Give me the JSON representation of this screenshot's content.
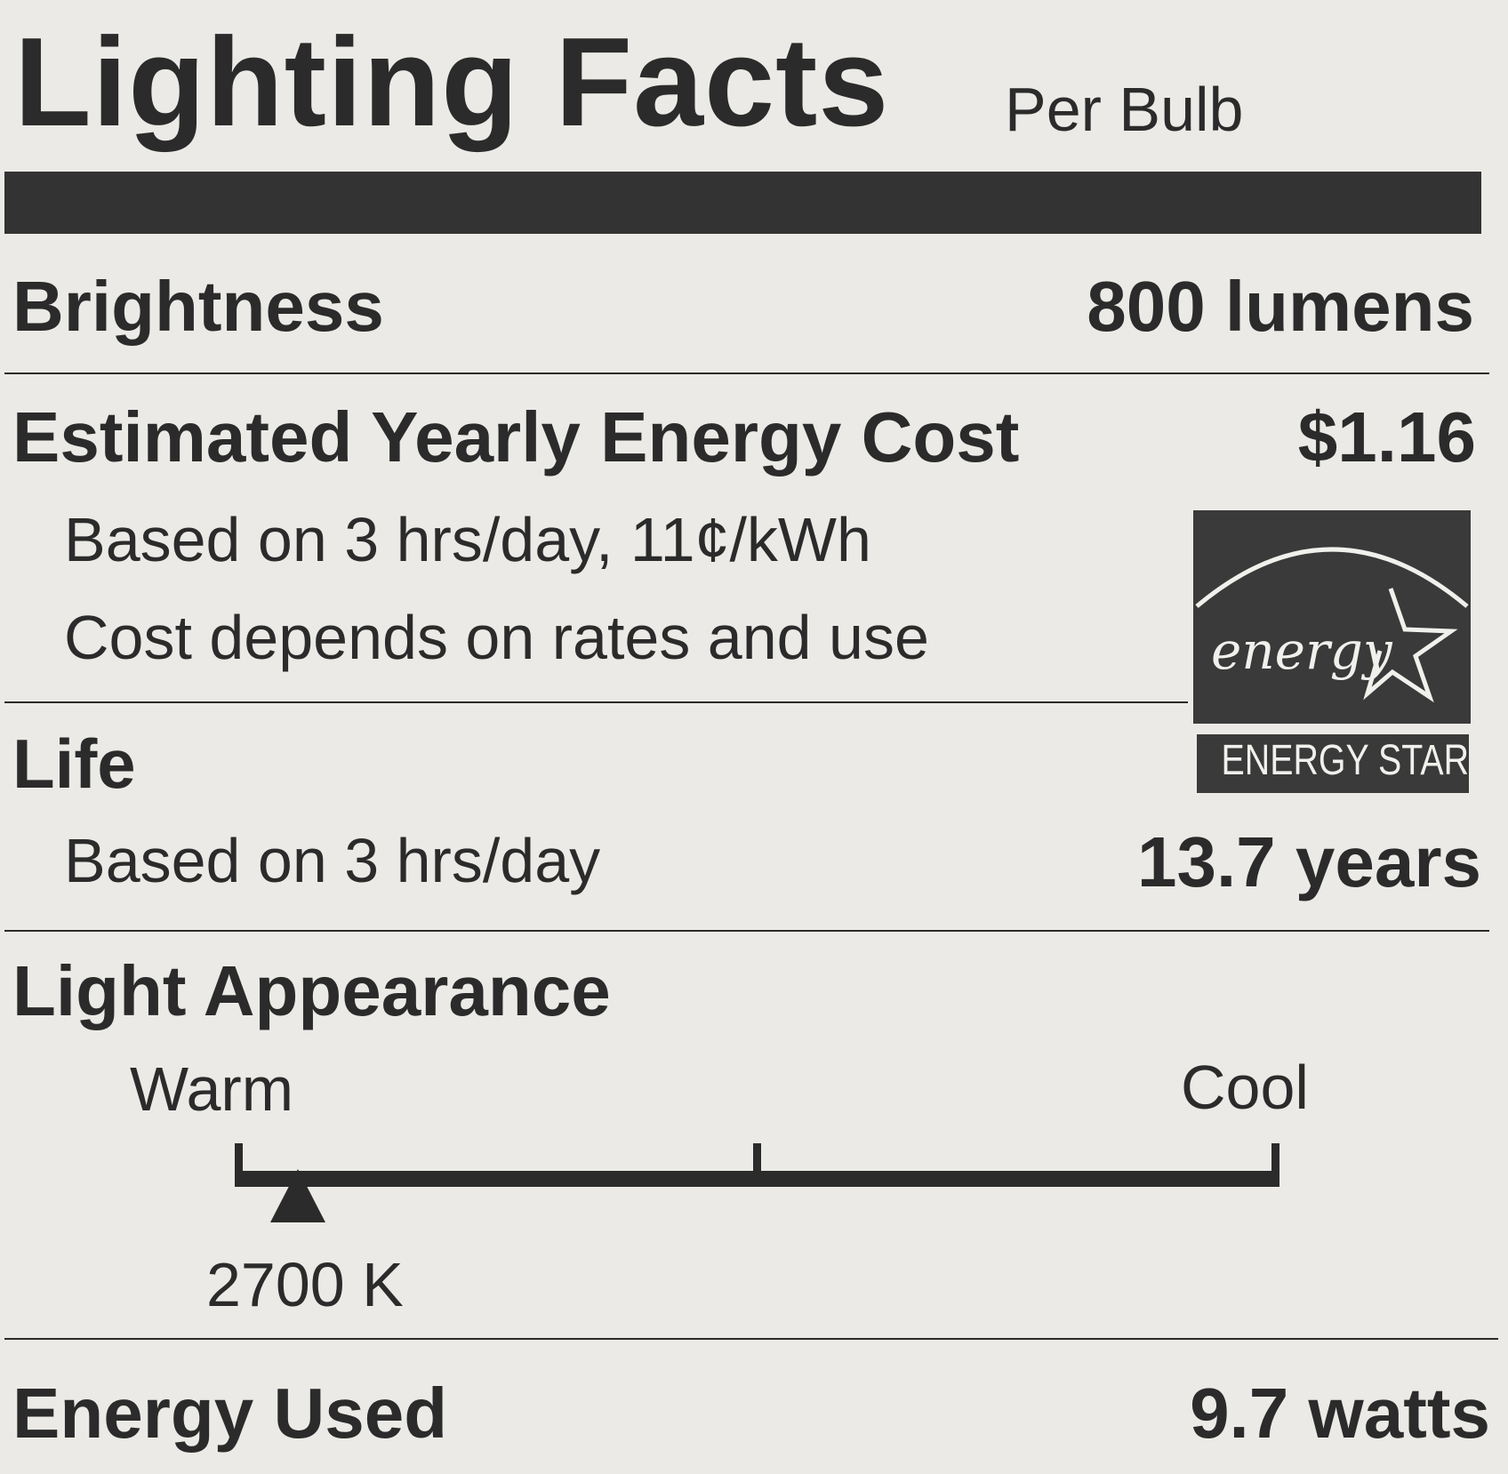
{
  "title": "Lighting Facts",
  "subtitle": "Per Bulb",
  "brightness": {
    "label": "Brightness",
    "value": "800 lumens"
  },
  "energy_cost": {
    "label": "Estimated Yearly Energy Cost",
    "value": "$1.16",
    "note1": "Based on 3 hrs/day, 11¢/kWh",
    "note2": "Cost depends on rates and use"
  },
  "life": {
    "label": "Life",
    "note": "Based on 3 hrs/day",
    "value": "13.7 years"
  },
  "light_appearance": {
    "label": "Light Appearance",
    "warm_label": "Warm",
    "cool_label": "Cool",
    "value": "2700 K",
    "scale_min_k": 2700,
    "scale_max_k": 6500,
    "marker_k": 2700
  },
  "energy_used": {
    "label": "Energy Used",
    "value": "9.7 watts"
  },
  "logo": {
    "script_text": "energy",
    "caption": "ENERGY STAR"
  },
  "colors": {
    "ink": "#2b2b2b",
    "paper": "#ebeae6",
    "logo_bg": "#3a3a3a"
  }
}
